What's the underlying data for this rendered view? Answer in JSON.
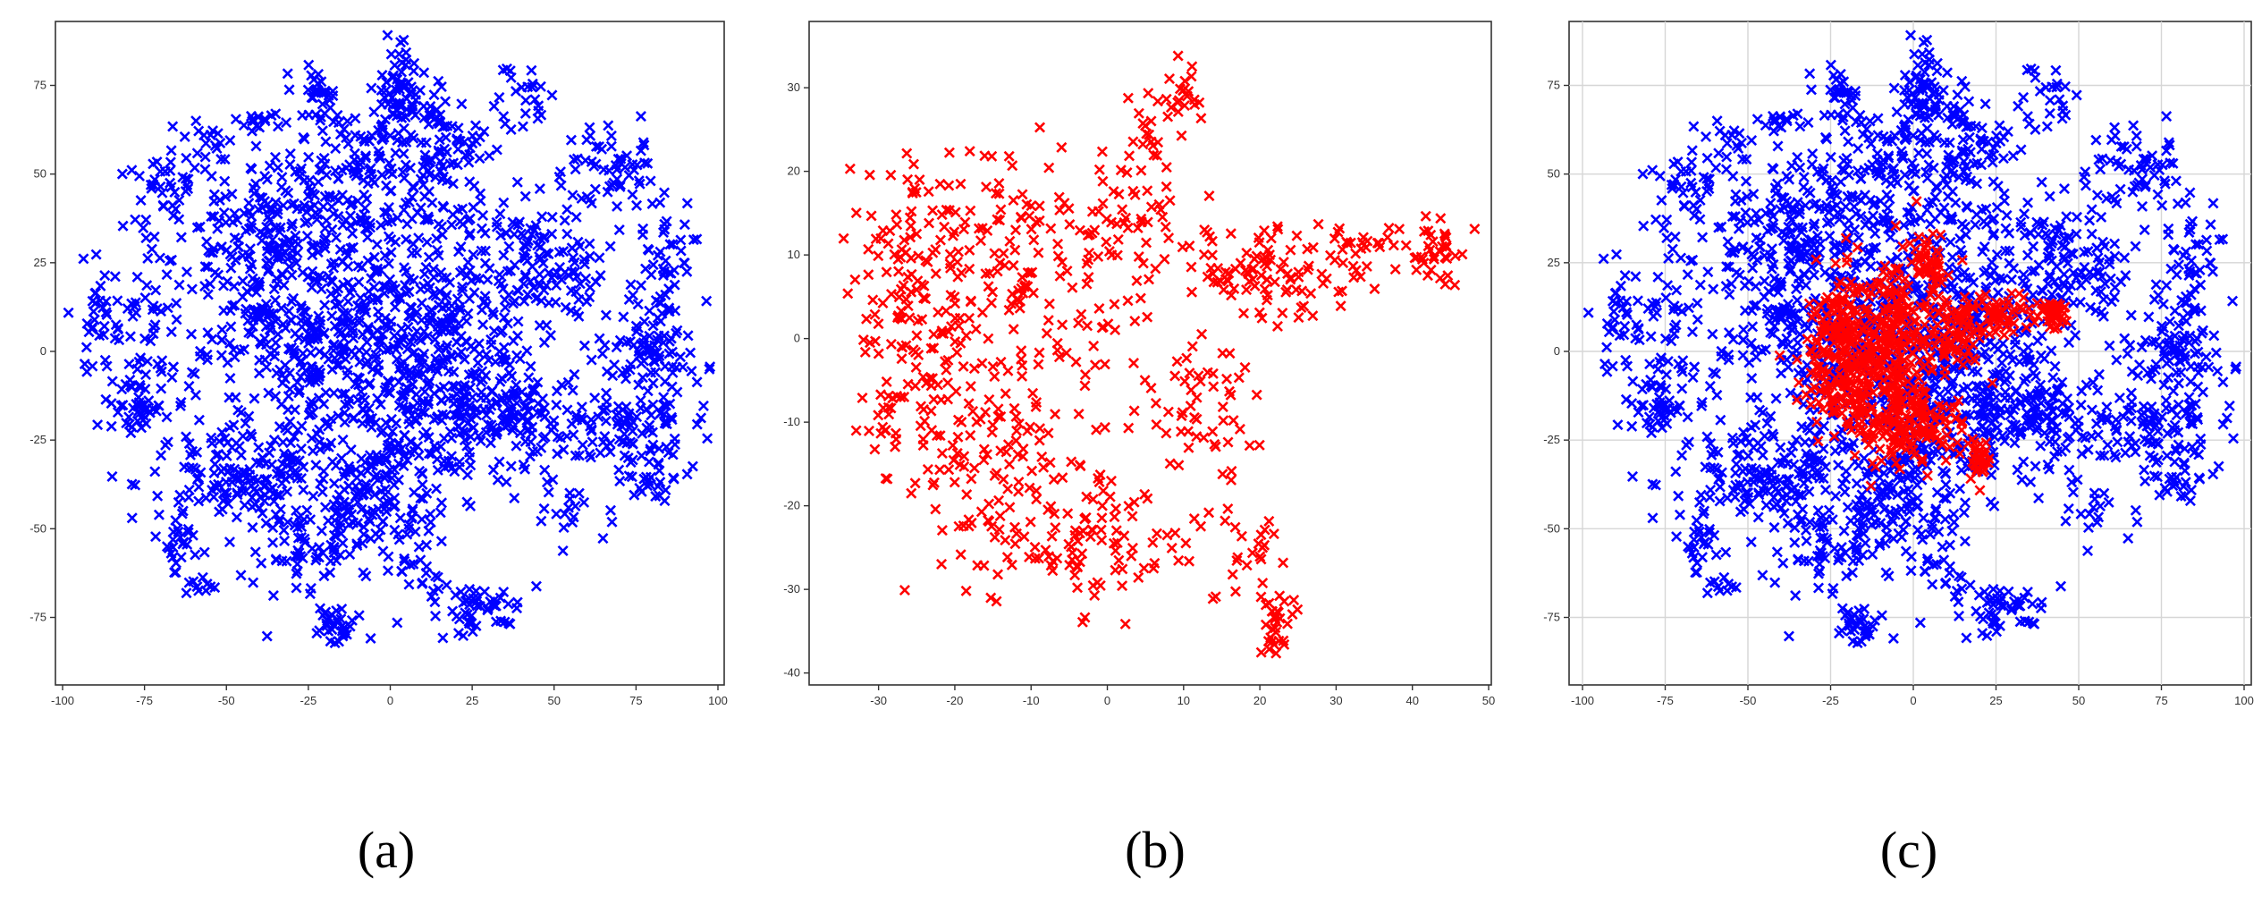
{
  "figure": {
    "captions": [
      "(a)",
      "(b)",
      "(c)"
    ]
  },
  "chart_data": [
    {
      "type": "scatter",
      "id": "a",
      "marker": "x",
      "grid": false,
      "xlim": [
        -100,
        100
      ],
      "ylim": [
        -90,
        90
      ],
      "xticks": [
        -100,
        -75,
        -50,
        -25,
        0,
        25,
        50,
        75,
        100
      ],
      "yticks": [
        75,
        50,
        25,
        0,
        -25,
        -50,
        -75
      ],
      "series": [
        {
          "color": "#0000ff",
          "clusters": [
            {
              "cx": 3,
              "cy": 75,
              "sx": 3,
              "sy": 7,
              "n": 60
            },
            {
              "cx": -22,
              "cy": 73,
              "sx": 3,
              "sy": 4,
              "n": 25
            },
            {
              "cx": -40,
              "cy": 65,
              "sx": 3,
              "sy": 2,
              "n": 15
            },
            {
              "cx": -55,
              "cy": 60,
              "sx": 3,
              "sy": 4,
              "n": 12
            },
            {
              "cx": -65,
              "cy": 47,
              "sx": 7,
              "sy": 5,
              "n": 30
            },
            {
              "cx": -90,
              "cy": 10,
              "sx": 4,
              "sy": 10,
              "n": 28
            },
            {
              "cx": -75,
              "cy": 8,
              "sx": 6,
              "sy": 15,
              "n": 60
            },
            {
              "cx": -80,
              "cy": -16,
              "sx": 6,
              "sy": 5,
              "n": 40
            },
            {
              "cx": -40,
              "cy": 30,
              "sx": 15,
              "sy": 15,
              "n": 220
            },
            {
              "cx": -10,
              "cy": 40,
              "sx": 12,
              "sy": 15,
              "n": 200
            },
            {
              "cx": 15,
              "cy": 55,
              "sx": 8,
              "sy": 10,
              "n": 110
            },
            {
              "cx": 40,
              "cy": 70,
              "sx": 5,
              "sy": 5,
              "n": 25
            },
            {
              "cx": 68,
              "cy": 52,
              "sx": 6,
              "sy": 6,
              "n": 50
            },
            {
              "cx": 85,
              "cy": 27,
              "sx": 5,
              "sy": 8,
              "n": 40
            },
            {
              "cx": 45,
              "cy": 25,
              "sx": 12,
              "sy": 12,
              "n": 150
            },
            {
              "cx": 80,
              "cy": 0,
              "sx": 8,
              "sy": 8,
              "n": 90
            },
            {
              "cx": -20,
              "cy": 0,
              "sx": 20,
              "sy": 15,
              "n": 330
            },
            {
              "cx": 15,
              "cy": 5,
              "sx": 15,
              "sy": 15,
              "n": 220
            },
            {
              "cx": 30,
              "cy": -20,
              "sx": 20,
              "sy": 8,
              "n": 230
            },
            {
              "cx": 75,
              "cy": -25,
              "sx": 10,
              "sy": 10,
              "n": 90
            },
            {
              "cx": -45,
              "cy": -35,
              "sx": 15,
              "sy": 8,
              "n": 170
            },
            {
              "cx": -5,
              "cy": -40,
              "sx": 12,
              "sy": 10,
              "n": 150
            },
            {
              "cx": -25,
              "cy": -55,
              "sx": 12,
              "sy": 8,
              "n": 80
            },
            {
              "cx": -65,
              "cy": -55,
              "sx": 2,
              "sy": 4,
              "n": 18
            },
            {
              "cx": -58,
              "cy": -66,
              "sx": 2,
              "sy": 2,
              "n": 10
            },
            {
              "cx": -17,
              "cy": -78,
              "sx": 2.5,
              "sy": 3,
              "n": 30
            },
            {
              "cx": 25,
              "cy": -72,
              "sx": 8,
              "sy": 4,
              "n": 55
            },
            {
              "cx": 7,
              "cy": -62,
              "sx": 5,
              "sy": 3,
              "n": 15
            },
            {
              "cx": 55,
              "cy": -45,
              "sx": 4,
              "sy": 5,
              "n": 15
            },
            {
              "cx": 80,
              "cy": -38,
              "sx": 3,
              "sy": 3,
              "n": 12
            }
          ]
        }
      ]
    },
    {
      "type": "scatter",
      "id": "b",
      "marker": "x",
      "grid": false,
      "xlim": [
        -35,
        50
      ],
      "ylim": [
        -41,
        36
      ],
      "xticks": [
        -30,
        -20,
        -10,
        0,
        10,
        20,
        30,
        40,
        50
      ],
      "yticks": [
        30,
        20,
        10,
        0,
        -10,
        -20,
        -30,
        -40
      ],
      "series": [
        {
          "color": "#ff0000",
          "clusters": [
            {
              "cx": -25,
              "cy": 7,
              "sx": 5,
              "sy": 7,
              "n": 140
            },
            {
              "cx": -12,
              "cy": 10,
              "sx": 5,
              "sy": 8,
              "n": 90
            },
            {
              "cx": -18,
              "cy": -10,
              "sx": 6,
              "sy": 7,
              "n": 110
            },
            {
              "cx": -10,
              "cy": -20,
              "sx": 6,
              "sy": 5,
              "n": 80
            },
            {
              "cx": 0,
              "cy": -24,
              "sx": 5,
              "sy": 4,
              "n": 60
            },
            {
              "cx": -2,
              "cy": 5,
              "sx": 3,
              "sy": 8,
              "n": 50
            },
            {
              "cx": 5,
              "cy": 20,
              "sx": 3,
              "sy": 6,
              "n": 45
            },
            {
              "cx": 9,
              "cy": 29,
              "sx": 2,
              "sy": 3,
              "n": 25
            },
            {
              "cx": 12,
              "cy": -8,
              "sx": 4,
              "sy": 4,
              "n": 55
            },
            {
              "cx": 20,
              "cy": 8,
              "sx": 5,
              "sy": 3,
              "n": 90
            },
            {
              "cx": 35,
              "cy": 10,
              "sx": 5,
              "sy": 2,
              "n": 45
            },
            {
              "cx": 44,
              "cy": 11,
              "sx": 1.5,
              "sy": 2,
              "n": 25
            },
            {
              "cx": 22,
              "cy": -35,
              "sx": 1.2,
              "sy": 2,
              "n": 30
            },
            {
              "cx": 17,
              "cy": -25,
              "sx": 3,
              "sy": 4,
              "n": 25
            },
            {
              "cx": -29,
              "cy": -10,
              "sx": 1,
              "sy": 2,
              "n": 12
            }
          ]
        }
      ]
    },
    {
      "type": "scatter",
      "id": "c",
      "marker": "x",
      "grid": true,
      "xlim": [
        -100,
        100
      ],
      "ylim": [
        -90,
        90
      ],
      "xticks": [
        -100,
        -75,
        -50,
        -25,
        0,
        25,
        50,
        75,
        100
      ],
      "yticks": [
        75,
        50,
        25,
        0,
        -25,
        -50,
        -75
      ],
      "series": [
        {
          "color": "#0000ff",
          "copy_of": "a"
        },
        {
          "color": "#ff0000",
          "clusters": [
            {
              "cx": -20,
              "cy": 5,
              "sx": 7,
              "sy": 10,
              "n": 220
            },
            {
              "cx": -10,
              "cy": -10,
              "sx": 8,
              "sy": 8,
              "n": 180
            },
            {
              "cx": 0,
              "cy": -22,
              "sx": 7,
              "sy": 5,
              "n": 120
            },
            {
              "cx": -5,
              "cy": 10,
              "sx": 3,
              "sy": 10,
              "n": 70
            },
            {
              "cx": 5,
              "cy": 25,
              "sx": 3,
              "sy": 5,
              "n": 50
            },
            {
              "cx": 10,
              "cy": 5,
              "sx": 6,
              "sy": 5,
              "n": 80
            },
            {
              "cx": 25,
              "cy": 10,
              "sx": 6,
              "sy": 3,
              "n": 70
            },
            {
              "cx": 42,
              "cy": 11,
              "sx": 2,
              "sy": 2,
              "n": 40
            },
            {
              "cx": 20,
              "cy": -30,
              "sx": 1.5,
              "sy": 3,
              "n": 30
            },
            {
              "cx": -25,
              "cy": -12,
              "sx": 3,
              "sy": 4,
              "n": 20
            }
          ]
        }
      ]
    }
  ]
}
